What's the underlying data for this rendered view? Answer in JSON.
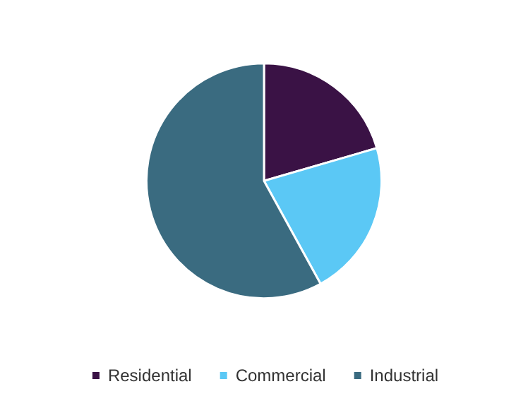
{
  "chart_data": {
    "type": "pie",
    "categories": [
      "Residential",
      "Commercial",
      "Industrial"
    ],
    "values": [
      20.5,
      21.5,
      58
    ],
    "colors": [
      "#3a1245",
      "#5bc8f5",
      "#3a6b80"
    ],
    "legend": "bottom"
  }
}
